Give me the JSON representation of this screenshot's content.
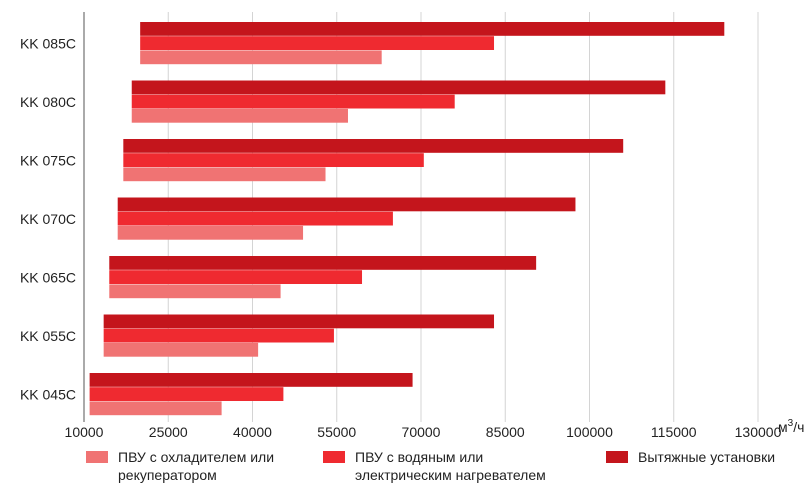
{
  "chart_data": {
    "type": "bar",
    "orientation": "horizontal",
    "categories": [
      "KK 085C",
      "KK 080C",
      "KK 075C",
      "KK 070C",
      "KK 065C",
      "KK 055C",
      "KK 045C"
    ],
    "series": [
      {
        "name": "Вытяжные установки",
        "color": "#c4151c",
        "ranges": [
          [
            20000,
            124000
          ],
          [
            18500,
            113500
          ],
          [
            17000,
            106000
          ],
          [
            16000,
            97500
          ],
          [
            14500,
            90500
          ],
          [
            13500,
            83000
          ],
          [
            11000,
            68500
          ]
        ]
      },
      {
        "name": "ПВУ с водяным или\nэлектрическим нагревателем",
        "color": "#ef2a30",
        "ranges": [
          [
            20000,
            83000
          ],
          [
            18500,
            76000
          ],
          [
            17000,
            70500
          ],
          [
            16000,
            65000
          ],
          [
            14500,
            59500
          ],
          [
            13500,
            54500
          ],
          [
            11000,
            45500
          ]
        ]
      },
      {
        "name": "ПВУ с охладителем или\nрекуператором",
        "color": "#f07373",
        "ranges": [
          [
            20000,
            63000
          ],
          [
            18500,
            57000
          ],
          [
            17000,
            53000
          ],
          [
            16000,
            49000
          ],
          [
            14500,
            45000
          ],
          [
            13500,
            41000
          ],
          [
            11000,
            34500
          ]
        ]
      }
    ],
    "x_ticks": [
      "10000",
      "25000",
      "40000",
      "55000",
      "70000",
      "85000",
      "100000",
      "115000",
      "130000"
    ],
    "xlim": [
      10000,
      130000
    ],
    "unit_base": "м",
    "unit_sup": "3",
    "unit_tail": "/ч",
    "grid": "vertical",
    "legend_position": "bottom"
  }
}
